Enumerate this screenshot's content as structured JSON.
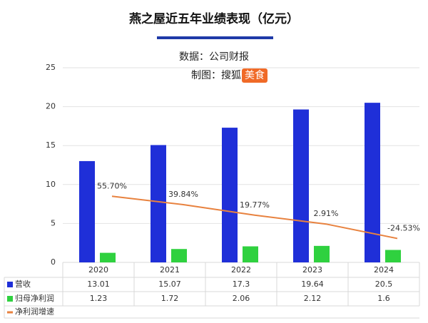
{
  "chart_data": {
    "type": "bar",
    "title": "燕之屋近五年业绩表现（亿元）",
    "source": "数据：公司财报",
    "credit": "制图：搜狐",
    "credit_badge": "美食",
    "categories": [
      "2020",
      "2021",
      "2022",
      "2023",
      "2024"
    ],
    "series": [
      {
        "name": "营收",
        "color": "#1f2fd8",
        "values": [
          13.01,
          15.07,
          17.3,
          19.64,
          20.5
        ]
      },
      {
        "name": "归母净利润",
        "color": "#2fd13f",
        "values": [
          1.23,
          1.72,
          2.06,
          2.12,
          1.6
        ]
      },
      {
        "name": "净利润增速",
        "type": "line",
        "axis": "y2",
        "color": "#e8823f",
        "values": [
          55.7,
          39.84,
          19.77,
          2.91,
          -24.53
        ],
        "value_labels": [
          "55.70%",
          "39.84%",
          "19.77%",
          "2.91%",
          "-24.53%"
        ]
      }
    ],
    "ylim": [
      0,
      25
    ],
    "yticks": [
      0,
      5,
      10,
      15,
      20,
      25
    ],
    "y2lim": [
      -70,
      300
    ],
    "grid": true
  }
}
